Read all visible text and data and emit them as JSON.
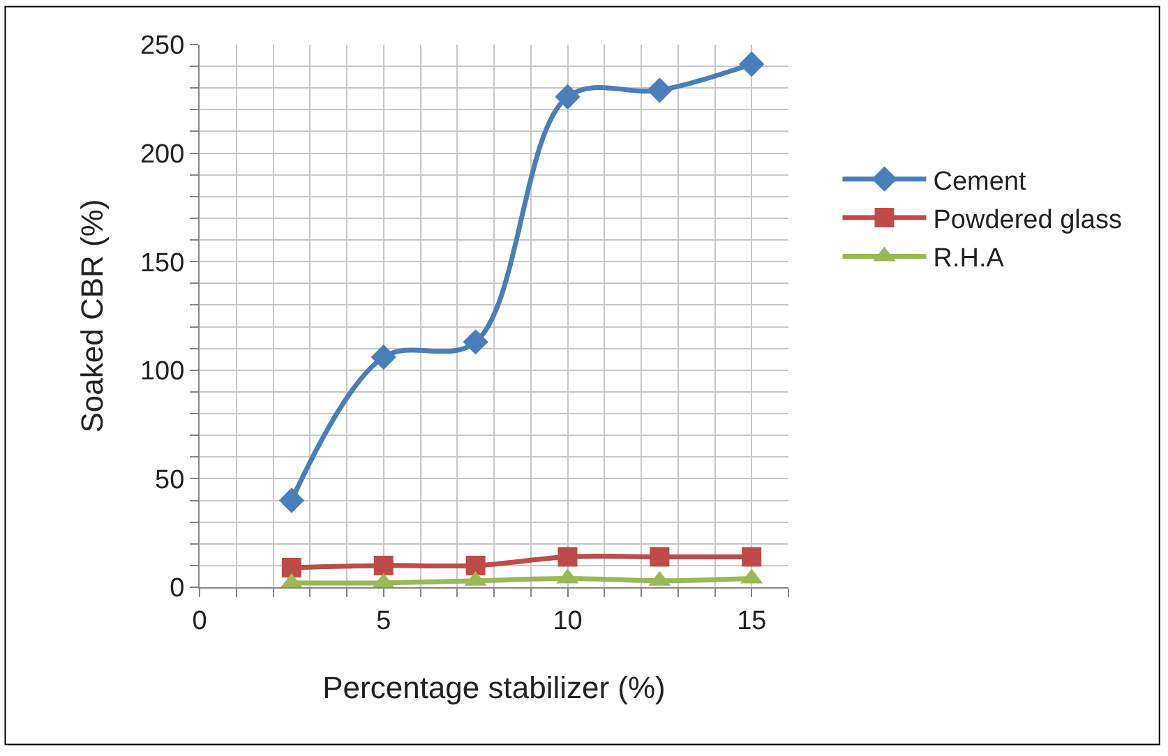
{
  "chart_data": {
    "type": "line",
    "xlabel": "Percentage stabilizer (%)",
    "ylabel": "Soaked CBR (%)",
    "x": [
      2.5,
      5,
      7.5,
      10,
      12.5,
      15
    ],
    "series": [
      {
        "name": "Cement",
        "color": "#4a7ebb",
        "marker": "diamond",
        "values": [
          40,
          106,
          113,
          226,
          229,
          241
        ]
      },
      {
        "name": "Powdered glass",
        "color": "#be4b48",
        "marker": "square",
        "values": [
          9,
          10,
          10,
          14,
          14,
          14
        ]
      },
      {
        "name": "R.H.A",
        "color": "#98b954",
        "marker": "triangle",
        "values": [
          2,
          2,
          3,
          4,
          3,
          4
        ]
      }
    ],
    "xlim": [
      0,
      16
    ],
    "xticks": [
      0,
      {
        "value": 1,
        "label": null
      },
      {
        "value": 2,
        "label": null
      },
      {
        "value": 3,
        "label": null
      },
      {
        "value": 4,
        "label": null
      },
      5,
      {
        "value": 6,
        "label": null
      },
      {
        "value": 7,
        "label": null
      },
      {
        "value": 8,
        "label": null
      },
      {
        "value": 9,
        "label": null
      },
      10,
      {
        "value": 11,
        "label": null
      },
      {
        "value": 12,
        "label": null
      },
      {
        "value": 13,
        "label": null
      },
      {
        "value": 14,
        "label": null
      },
      15,
      {
        "value": 16,
        "label": null
      }
    ],
    "ylim": [
      0,
      250
    ],
    "yticks": [
      0,
      {
        "value": 10,
        "label": null
      },
      {
        "value": 20,
        "label": null
      },
      {
        "value": 30,
        "label": null
      },
      {
        "value": 40,
        "label": null
      },
      50,
      {
        "value": 60,
        "label": null
      },
      {
        "value": 70,
        "label": null
      },
      {
        "value": 80,
        "label": null
      },
      {
        "value": 90,
        "label": null
      },
      100,
      {
        "value": 110,
        "label": null
      },
      {
        "value": 120,
        "label": null
      },
      {
        "value": 130,
        "label": null
      },
      {
        "value": 140,
        "label": null
      },
      150,
      {
        "value": 160,
        "label": null
      },
      {
        "value": 170,
        "label": null
      },
      {
        "value": 180,
        "label": null
      },
      {
        "value": 190,
        "label": null
      },
      200,
      {
        "value": 210,
        "label": null
      },
      {
        "value": 220,
        "label": null
      },
      {
        "value": 230,
        "label": null
      },
      {
        "value": 240,
        "label": null
      },
      250
    ],
    "grid": true,
    "legend": "right",
    "line_style": "solid"
  }
}
